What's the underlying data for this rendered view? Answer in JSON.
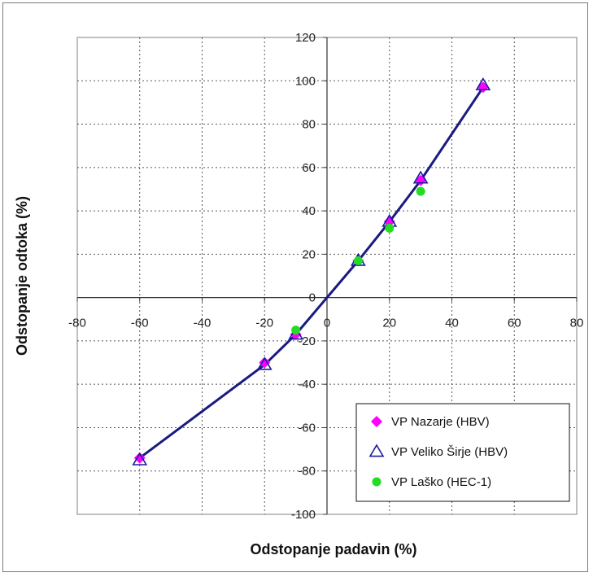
{
  "chart_data": {
    "type": "scatter",
    "title": "",
    "xlabel": "Odstopanje padavin (%)",
    "ylabel": "Odstopanje odtoka (%)",
    "xlim": [
      -80,
      80
    ],
    "ylim": [
      -100,
      120
    ],
    "x_ticks": [
      -80,
      -60,
      -40,
      -20,
      0,
      20,
      40,
      60,
      80
    ],
    "y_ticks": [
      -100,
      -80,
      -60,
      -40,
      -20,
      0,
      20,
      40,
      60,
      80,
      100,
      120
    ],
    "x_tick_labels": [
      "-80",
      "-60",
      "-40",
      "-20",
      "0",
      "20",
      "40",
      "60",
      "80"
    ],
    "y_tick_labels": [
      "-100",
      "-80",
      "-60",
      "-40",
      "-20",
      "0",
      "20",
      "40",
      "60",
      "80",
      "100",
      "120"
    ],
    "grid": true,
    "legend_position": "bottom-right",
    "series": [
      {
        "name": "VP Nazarje (HBV)",
        "marker": "diamond",
        "color": "#ff00ff",
        "x": [
          -60,
          -20,
          -10,
          10,
          20,
          30,
          50
        ],
        "y": [
          -74,
          -30,
          -17,
          17,
          35,
          54,
          97
        ]
      },
      {
        "name": "VP Veliko Širje (HBV)",
        "marker": "triangle-open",
        "color": "#1a1aa0",
        "x": [
          -60,
          -20,
          -10,
          10,
          20,
          30,
          50
        ],
        "y": [
          -75,
          -31,
          -17,
          17,
          35,
          55,
          98
        ]
      },
      {
        "name": "VP Laško (HEC-1)",
        "marker": "circle",
        "color": "#22dd22",
        "x": [
          -10,
          10,
          20,
          30
        ],
        "y": [
          -15,
          17,
          32,
          49
        ]
      }
    ],
    "trend_line": {
      "color": "#1a1a80",
      "x": [
        -60,
        -20,
        -10,
        0,
        10,
        20,
        30,
        50
      ],
      "y": [
        -74,
        -31,
        -17,
        0,
        17,
        35,
        54,
        97
      ]
    }
  }
}
